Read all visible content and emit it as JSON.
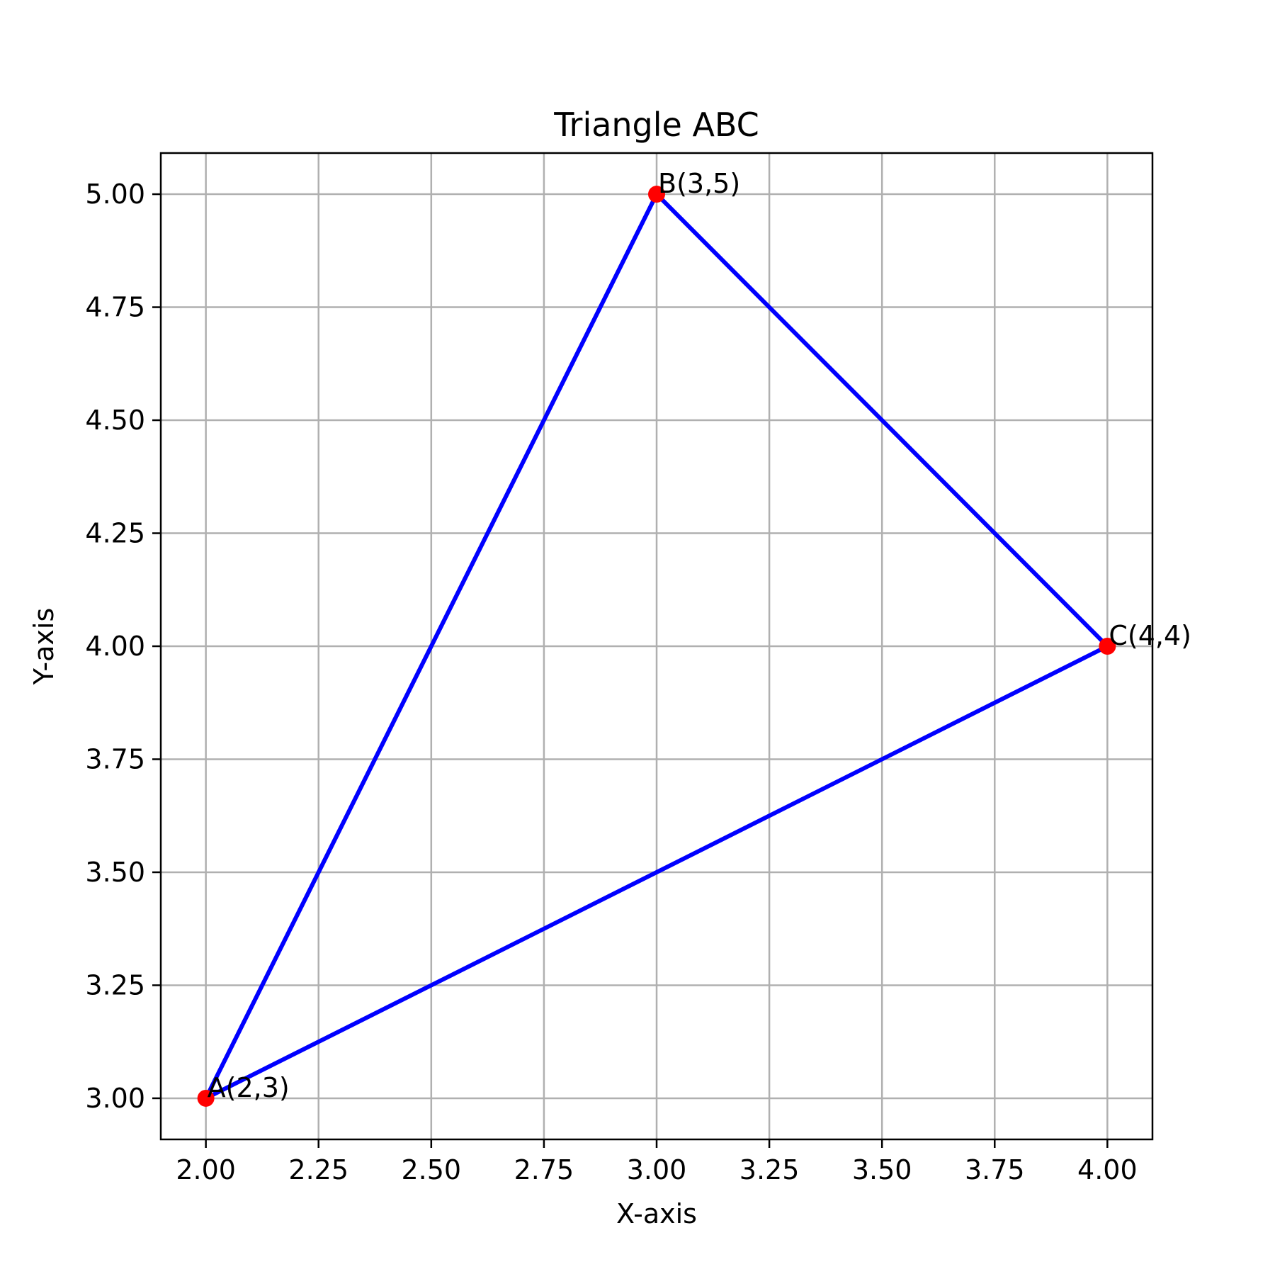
{
  "chart_data": {
    "type": "line",
    "title": "Triangle ABC",
    "xlabel": "X-axis",
    "ylabel": "Y-axis",
    "xlim": [
      1.9,
      4.1
    ],
    "ylim": [
      2.909,
      5.091
    ],
    "x_ticks": [
      "2.00",
      "2.25",
      "2.50",
      "2.75",
      "3.00",
      "3.25",
      "3.50",
      "3.75",
      "4.00"
    ],
    "y_ticks": [
      "3.00",
      "3.25",
      "3.50",
      "3.75",
      "4.00",
      "4.25",
      "4.50",
      "4.75",
      "5.00"
    ],
    "grid": true,
    "points": [
      {
        "label": "A(2,3)",
        "x": 2,
        "y": 3
      },
      {
        "label": "B(3,5)",
        "x": 3,
        "y": 5
      },
      {
        "label": "C(4,4)",
        "x": 4,
        "y": 4
      }
    ],
    "series": [
      {
        "x": [
          2,
          3,
          4,
          2
        ],
        "y": [
          3,
          5,
          4,
          3
        ]
      }
    ],
    "colors": {
      "line": "#0000ff",
      "points": "#ff0000",
      "grid": "#b0b0b0"
    }
  }
}
